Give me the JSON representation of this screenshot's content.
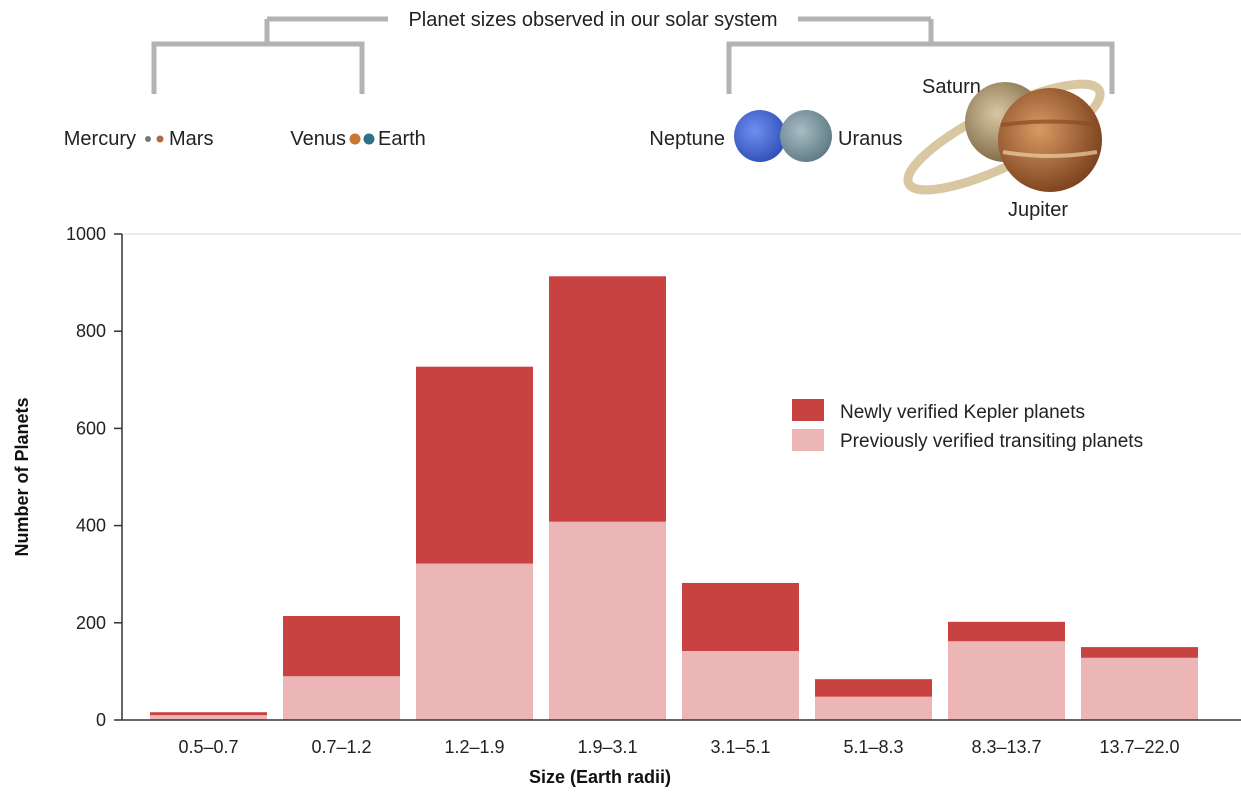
{
  "header": {
    "title": "Planet sizes observed in our solar system"
  },
  "planets": {
    "mercury": "Mercury",
    "mars": "Mars",
    "venus": "Venus",
    "earth": "Earth",
    "neptune": "Neptune",
    "uranus": "Uranus",
    "saturn": "Saturn",
    "jupiter": "Jupiter"
  },
  "colors": {
    "newly": "#c94242",
    "previous": "#ebb6b5",
    "axis": "#333333",
    "grid": "#d9d9d9",
    "bracket": "#b3b3b3"
  },
  "chart_data": {
    "type": "bar",
    "stacked": true,
    "categories": [
      "0.5–0.7",
      "0.7–1.2",
      "1.2–1.9",
      "1.9–3.1",
      "3.1–5.1",
      "5.1–8.3",
      "8.3–13.7",
      "13.7–22.0"
    ],
    "series": [
      {
        "name": "Previously verified transiting planets",
        "values": [
          10,
          90,
          322,
          408,
          142,
          48,
          162,
          128
        ]
      },
      {
        "name": "Newly verified Kepler planets",
        "values": [
          6,
          124,
          405,
          505,
          140,
          36,
          40,
          22
        ]
      }
    ],
    "title": "",
    "xlabel": "Size (Earth radii)",
    "ylabel": "Number of Planets",
    "ylim": [
      0,
      1000
    ],
    "yticks": [
      "0",
      "200",
      "400",
      "600",
      "800",
      "1000"
    ],
    "legend_position": "right",
    "legend": [
      "Newly verified Kepler planets",
      "Previously verified transiting planets"
    ],
    "grid": false
  }
}
